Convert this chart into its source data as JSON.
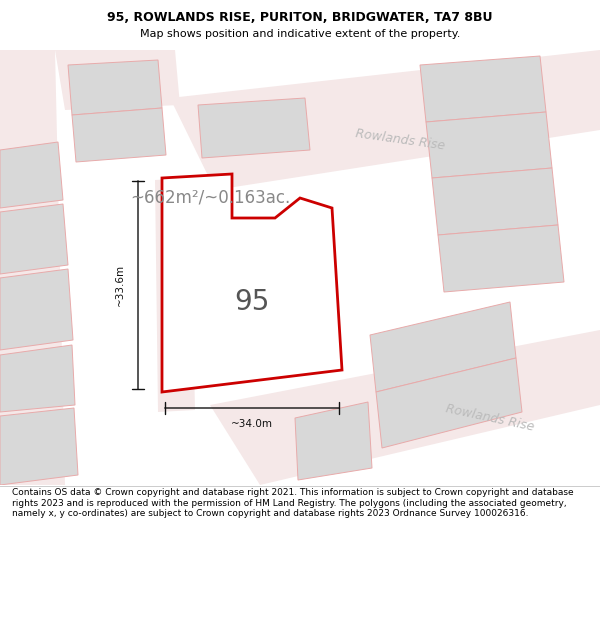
{
  "title_line1": "95, ROWLANDS RISE, PURITON, BRIDGWATER, TA7 8BU",
  "title_line2": "Map shows position and indicative extent of the property.",
  "footer_text": "Contains OS data © Crown copyright and database right 2021. This information is subject to Crown copyright and database rights 2023 and is reproduced with the permission of HM Land Registry. The polygons (including the associated geometry, namely x, y co-ordinates) are subject to Crown copyright and database rights 2023 Ordnance Survey 100026316.",
  "area_label": "~662m²/~0.163ac.",
  "number_label": "95",
  "dim_horizontal": "~34.0m",
  "dim_vertical": "~33.6m",
  "road_name_top": "Rowlands Rise",
  "road_name_bottom": "Rowlands Rise",
  "map_bg": "#eeeeee",
  "building_color": "#d8d8d8",
  "building_edge": "#e8aaaa",
  "road_color": "#f5e8e8",
  "red_outline": "#cc0000",
  "dim_color": "#111111",
  "road_label_color": "#bbbbbb",
  "area_label_color": "#888888",
  "number_label_color": "#555555",
  "title_fontsize": 9,
  "subtitle_fontsize": 8,
  "footer_fontsize": 6.5,
  "area_fontsize": 12,
  "number_fontsize": 20,
  "road_label_fontsize": 9,
  "dim_fontsize": 7.5
}
